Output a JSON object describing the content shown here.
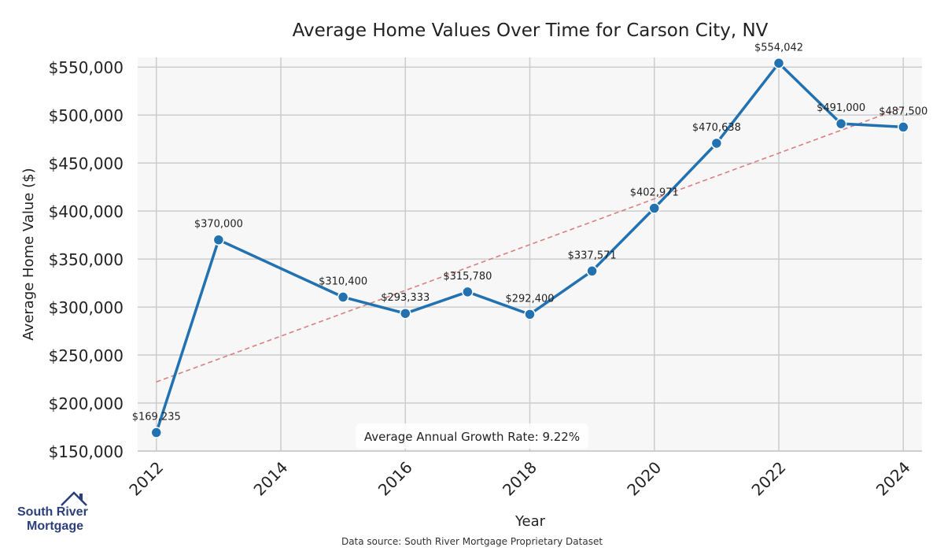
{
  "chart_data": {
    "type": "line",
    "title": "Average Home Values Over Time for Carson City, NV",
    "xlabel": "Year",
    "ylabel": "Average Home Value ($)",
    "xlim": [
      2011.7,
      2024.3
    ],
    "ylim": [
      150000,
      560000
    ],
    "xticks": [
      2012,
      2014,
      2016,
      2018,
      2020,
      2022,
      2024
    ],
    "yticks": [
      150000,
      200000,
      250000,
      300000,
      350000,
      400000,
      450000,
      500000,
      550000
    ],
    "ytick_labels": [
      "$150,000",
      "$200,000",
      "$250,000",
      "$300,000",
      "$350,000",
      "$400,000",
      "$450,000",
      "$500,000",
      "$550,000"
    ],
    "grid": true,
    "series": [
      {
        "name": "Average Home Value",
        "color": "#2271b1",
        "x": [
          2012,
          2013,
          2015,
          2016,
          2017,
          2018,
          2019,
          2020,
          2021,
          2022,
          2023,
          2024
        ],
        "values": [
          169235,
          370000,
          310400,
          293333,
          315780,
          292400,
          337571,
          402971,
          470638,
          554042,
          491000,
          487500
        ],
        "labels": [
          "$169,235",
          "$370,000",
          "$310,400",
          "$293,333",
          "$315,780",
          "$292,400",
          "$337,571",
          "$402,971",
          "$470,638",
          "$554,042",
          "$491,000",
          "$487,500"
        ]
      }
    ],
    "trendline": {
      "name": "Trend",
      "color": "#d88080",
      "style": "dashed",
      "x": [
        2012,
        2024
      ],
      "values": [
        222000,
        508000
      ]
    },
    "annotation": "Average Annual Growth Rate: 9.22%"
  },
  "logo": {
    "line1": "South River",
    "line2": "Mortgage"
  },
  "source": "Data source: South River Mortgage Proprietary Dataset"
}
